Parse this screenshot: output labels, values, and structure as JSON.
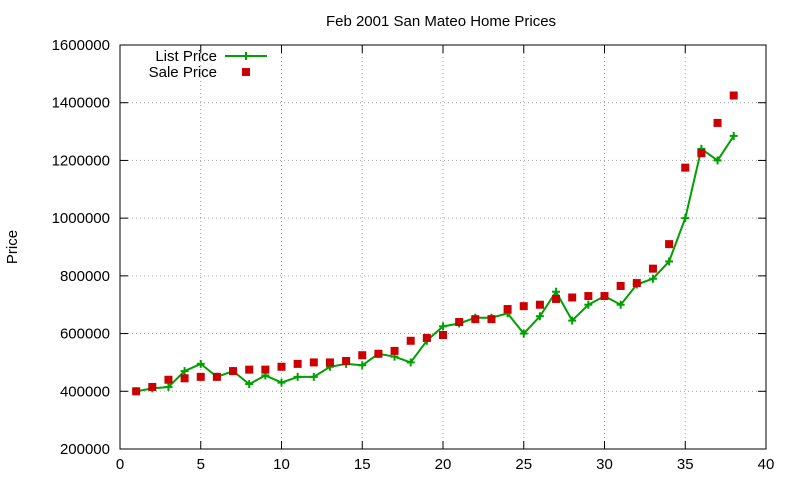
{
  "chart_data": {
    "type": "line",
    "title": "Feb 2001 San Mateo Home Prices",
    "xlabel": "",
    "ylabel": "Price",
    "xlim": [
      0,
      40
    ],
    "ylim": [
      200000,
      1600000
    ],
    "xticks": [
      "0",
      "5",
      "10",
      "15",
      "20",
      "25",
      "30",
      "35",
      "40"
    ],
    "yticks": [
      "200000",
      "400000",
      "600000",
      "800000",
      "1000000",
      "1200000",
      "1400000",
      "1600000"
    ],
    "grid": true,
    "legend_position": "top-left",
    "series": [
      {
        "name": "List Price",
        "style": "line-with-plus-markers",
        "color": "#00a000",
        "x": [
          1,
          2,
          3,
          4,
          5,
          6,
          7,
          8,
          9,
          10,
          11,
          12,
          13,
          14,
          15,
          16,
          17,
          18,
          19,
          20,
          21,
          22,
          23,
          24,
          25,
          26,
          27,
          28,
          29,
          30,
          31,
          32,
          33,
          34,
          35,
          36,
          37,
          38
        ],
        "values": [
          400000,
          410000,
          415000,
          470000,
          495000,
          450000,
          470000,
          425000,
          455000,
          430000,
          450000,
          450000,
          485000,
          495000,
          490000,
          530000,
          520000,
          500000,
          575000,
          625000,
          635000,
          655000,
          655000,
          670000,
          600000,
          660000,
          745000,
          645000,
          700000,
          730000,
          700000,
          770000,
          790000,
          850000,
          1000000,
          1240000,
          1200000,
          1285000
        ]
      },
      {
        "name": "Sale Price",
        "style": "square-markers",
        "color": "#cc0000",
        "x": [
          1,
          2,
          3,
          4,
          5,
          6,
          7,
          8,
          9,
          10,
          11,
          12,
          13,
          14,
          15,
          16,
          17,
          18,
          19,
          20,
          21,
          22,
          23,
          24,
          25,
          26,
          27,
          28,
          29,
          30,
          31,
          32,
          33,
          34,
          35,
          36,
          37,
          38
        ],
        "values": [
          400000,
          415000,
          440000,
          445000,
          450000,
          450000,
          470000,
          475000,
          475000,
          485000,
          495000,
          500000,
          500000,
          505000,
          525000,
          530000,
          540000,
          575000,
          585000,
          595000,
          640000,
          650000,
          650000,
          685000,
          695000,
          700000,
          720000,
          725000,
          730000,
          730000,
          765000,
          775000,
          825000,
          910000,
          1175000,
          1225000,
          1330000,
          1425000
        ]
      }
    ]
  }
}
